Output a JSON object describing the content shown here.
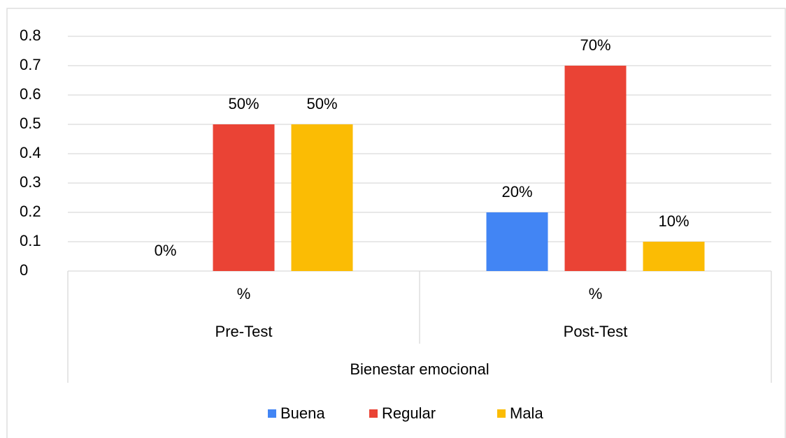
{
  "chart_data": {
    "type": "bar",
    "categories": [
      "%",
      "%"
    ],
    "groups": [
      "Pre-Test",
      "Post-Test"
    ],
    "supergroup": "Bienestar emocional",
    "series": [
      {
        "name": "Buena",
        "color": "#4285f4",
        "values": [
          0,
          0.2
        ],
        "value_labels": [
          "0%",
          "20%"
        ]
      },
      {
        "name": "Regular",
        "color": "#ea4335",
        "values": [
          0.5,
          0.7
        ],
        "value_labels": [
          "50%",
          "70%"
        ]
      },
      {
        "name": "Mala",
        "color": "#fbbc04",
        "values": [
          0.5,
          0.1
        ],
        "value_labels": [
          "50%",
          "10%"
        ]
      }
    ],
    "ylim": [
      0,
      0.8
    ],
    "yticks": [
      0,
      0.1,
      0.2,
      0.3,
      0.4,
      0.5,
      0.6,
      0.7,
      0.8
    ],
    "grid": true,
    "legend": "bottom"
  }
}
